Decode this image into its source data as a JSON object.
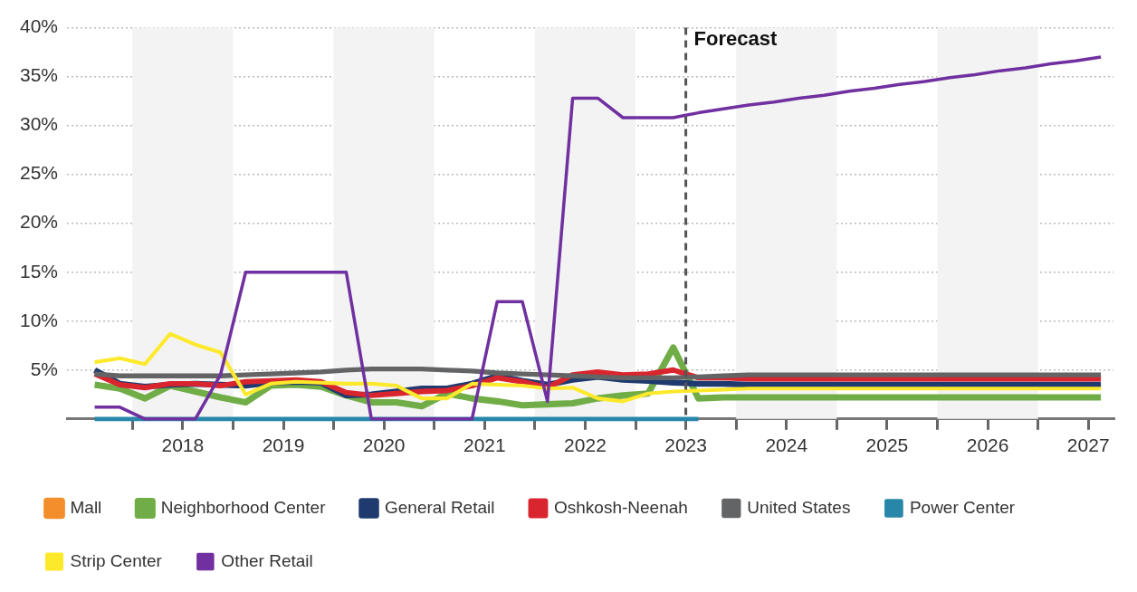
{
  "chart_data": {
    "type": "line",
    "x": [
      2017.625,
      2017.875,
      2018.125,
      2018.375,
      2018.625,
      2018.875,
      2019.125,
      2019.375,
      2019.625,
      2019.875,
      2020.125,
      2020.375,
      2020.625,
      2020.875,
      2021.125,
      2021.375,
      2021.625,
      2021.875,
      2022.125,
      2022.375,
      2022.625,
      2022.875,
      2023.125,
      2023.375,
      2023.625,
      2023.875,
      2024.125,
      2024.375,
      2024.625,
      2024.875,
      2025.125,
      2025.375,
      2025.625,
      2025.875,
      2026.125,
      2026.375,
      2026.625,
      2026.875,
      2027.125,
      2027.375,
      2027.625
    ],
    "series": [
      {
        "name": "Mall",
        "color": "#f28e2b",
        "values": [
          null,
          null,
          null,
          null,
          null,
          null,
          null,
          null,
          null,
          null,
          null,
          null,
          null,
          null,
          null,
          null,
          null,
          null,
          null,
          null,
          null,
          null,
          null,
          null,
          null,
          null,
          null,
          null,
          null,
          null,
          null,
          null,
          null,
          null,
          null,
          null,
          null,
          null,
          null,
          null,
          null
        ]
      },
      {
        "name": "Neighborhood Center",
        "color": "#70ad47",
        "values": [
          3.5,
          3.1,
          2.1,
          3.4,
          2.8,
          2.2,
          1.7,
          3.4,
          3.5,
          3.3,
          2.4,
          1.7,
          1.7,
          1.3,
          2.6,
          2.1,
          1.8,
          1.4,
          1.5,
          1.6,
          2.1,
          2.4,
          2.6,
          7.3,
          2.1,
          2.2,
          2.2,
          2.2,
          2.2,
          2.2,
          2.2,
          2.2,
          2.2,
          2.2,
          2.2,
          2.2,
          2.2,
          2.2,
          2.2,
          2.2,
          2.2
        ]
      },
      {
        "name": "General Retail",
        "color": "#1f3a6e",
        "values": [
          5.0,
          3.6,
          3.3,
          3.5,
          3.6,
          3.5,
          3.4,
          3.7,
          3.8,
          3.7,
          2.4,
          2.5,
          2.8,
          3.1,
          3.1,
          3.6,
          4.4,
          3.9,
          3.5,
          4.0,
          4.3,
          4.0,
          3.9,
          3.7,
          3.6,
          3.6,
          3.5,
          3.5,
          3.5,
          3.5,
          3.5,
          3.5,
          3.5,
          3.5,
          3.5,
          3.5,
          3.5,
          3.5,
          3.5,
          3.5,
          3.5
        ]
      },
      {
        "name": "Oshkosh-Neenah",
        "color": "#d9262e",
        "values": [
          4.6,
          3.5,
          3.2,
          3.6,
          3.6,
          3.4,
          3.8,
          3.9,
          4.0,
          3.8,
          2.7,
          2.4,
          2.6,
          2.8,
          2.9,
          3.4,
          4.2,
          3.8,
          3.2,
          4.5,
          4.8,
          4.5,
          4.6,
          5.0,
          4.2,
          4.2,
          4.1,
          4.1,
          4.1,
          4.1,
          4.1,
          4.1,
          4.1,
          4.1,
          4.1,
          4.1,
          4.1,
          4.1,
          4.1,
          4.1,
          4.1
        ]
      },
      {
        "name": "United States",
        "color": "#636466",
        "values": [
          4.6,
          4.4,
          4.4,
          4.4,
          4.4,
          4.4,
          4.5,
          4.6,
          4.7,
          4.8,
          5.0,
          5.1,
          5.1,
          5.1,
          5.0,
          4.9,
          4.7,
          4.6,
          4.5,
          4.4,
          4.3,
          4.2,
          4.2,
          4.2,
          4.3,
          4.4,
          4.5,
          4.5,
          4.5,
          4.5,
          4.5,
          4.5,
          4.5,
          4.5,
          4.5,
          4.5,
          4.5,
          4.5,
          4.5,
          4.5,
          4.5
        ]
      },
      {
        "name": "Power Center",
        "color": "#2887a8",
        "values": [
          0,
          0,
          0,
          0,
          0,
          0,
          0,
          0,
          0,
          0,
          0,
          0,
          0,
          0,
          0,
          0,
          0,
          0,
          0,
          0,
          0,
          0,
          0,
          0,
          0,
          null,
          null,
          null,
          null,
          null,
          null,
          null,
          null,
          null,
          null,
          null,
          null,
          null,
          null,
          null,
          null
        ]
      },
      {
        "name": "Strip Center",
        "color": "#fde92b",
        "values": [
          5.8,
          6.2,
          5.6,
          8.7,
          7.6,
          6.8,
          2.5,
          3.6,
          3.8,
          3.7,
          3.6,
          3.6,
          3.4,
          2.1,
          2.1,
          3.6,
          3.5,
          3.4,
          3.1,
          3.2,
          2.1,
          1.8,
          2.6,
          2.8,
          2.9,
          3.0,
          3.1,
          3.1,
          3.1,
          3.1,
          3.1,
          3.1,
          3.1,
          3.1,
          3.1,
          3.1,
          3.1,
          3.1,
          3.1,
          3.1,
          3.1
        ]
      },
      {
        "name": "Other Retail",
        "color": "#7030a0",
        "values": [
          1.2,
          1.2,
          0,
          0,
          0,
          4.5,
          15,
          15,
          15,
          15,
          15,
          0,
          0,
          0,
          0,
          0,
          12,
          12,
          1.8,
          32.8,
          32.8,
          30.8,
          30.8,
          30.8,
          31.3,
          31.7,
          32.1,
          32.4,
          32.8,
          33.1,
          33.5,
          33.8,
          34.2,
          34.5,
          34.9,
          35.2,
          35.6,
          35.9,
          36.3,
          36.6,
          37.0
        ]
      }
    ],
    "xlim": [
      2017.35,
      2027.75
    ],
    "xticks": [
      {
        "value": 2018,
        "label": null
      },
      {
        "value": 2018.5,
        "label": "2018"
      },
      {
        "value": 2019,
        "label": null
      },
      {
        "value": 2019.5,
        "label": "2019"
      },
      {
        "value": 2020,
        "label": null
      },
      {
        "value": 2020.5,
        "label": "2020"
      },
      {
        "value": 2021,
        "label": null
      },
      {
        "value": 2021.5,
        "label": "2021"
      },
      {
        "value": 2022,
        "label": null
      },
      {
        "value": 2022.5,
        "label": "2022"
      },
      {
        "value": 2023,
        "label": null
      },
      {
        "value": 2023.5,
        "label": "2023"
      },
      {
        "value": 2024,
        "label": null
      },
      {
        "value": 2024.5,
        "label": "2024"
      },
      {
        "value": 2025,
        "label": null
      },
      {
        "value": 2025.5,
        "label": "2025"
      },
      {
        "value": 2026,
        "label": null
      },
      {
        "value": 2026.5,
        "label": "2026"
      },
      {
        "value": 2027,
        "label": null
      },
      {
        "value": 2027.5,
        "label": "2027"
      }
    ],
    "ylim": [
      0,
      40
    ],
    "yticks": [
      {
        "value": 0,
        "label": null
      },
      {
        "value": 5,
        "label": "5%"
      },
      {
        "value": 10,
        "label": "10%"
      },
      {
        "value": 15,
        "label": "15%"
      },
      {
        "value": 20,
        "label": "20%"
      },
      {
        "value": 25,
        "label": "25%"
      },
      {
        "value": 30,
        "label": "30%"
      },
      {
        "value": 35,
        "label": "35%"
      },
      {
        "value": 40,
        "label": "40%"
      }
    ],
    "grid": "y",
    "legend": "bottom",
    "ref_lines": [
      {
        "axis": "x",
        "value": 2023.5,
        "label": "Forecast",
        "color": "#555555",
        "line_style": "dashed"
      }
    ],
    "bands": [
      {
        "axis": "x",
        "from": 2018,
        "to": 2019,
        "color": "#f3f3f3"
      },
      {
        "axis": "x",
        "from": 2020,
        "to": 2021,
        "color": "#f3f3f3"
      },
      {
        "axis": "x",
        "from": 2022,
        "to": 2023,
        "color": "#f3f3f3"
      },
      {
        "axis": "x",
        "from": 2024,
        "to": 2025,
        "color": "#f3f3f3"
      },
      {
        "axis": "x",
        "from": 2026,
        "to": 2027,
        "color": "#f3f3f3"
      }
    ]
  }
}
